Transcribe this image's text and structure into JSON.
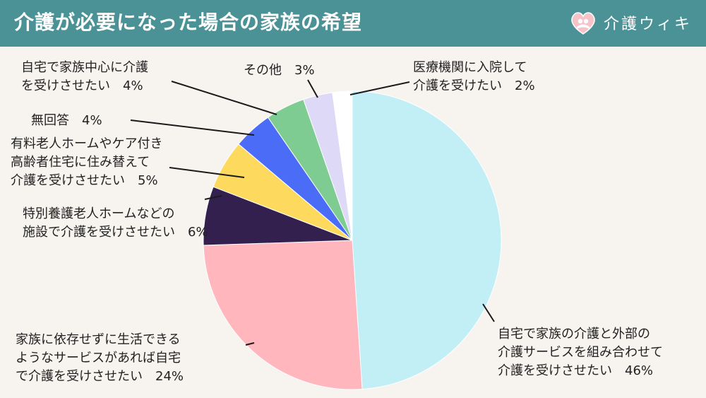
{
  "header": {
    "title": "介護が必要になった場合の家族の希望",
    "brand": "介護ウィキ",
    "brand_color": "#4a9296",
    "logo_icon": "heart-hug-icon"
  },
  "chart_data": {
    "type": "pie",
    "title": "介護が必要になった場合の家族の希望",
    "start_angle": "12 o'clock",
    "direction": "clockwise",
    "slices": [
      {
        "label": [
          "自宅で家族の介護と外部の",
          "介護サービスを組み合わせて",
          "介護を受けさせたい　46%"
        ],
        "value": 46,
        "color": "#c2eef5"
      },
      {
        "label": [
          "家族に依存せずに生活できる",
          "ようなサービスがあれば自宅",
          "で介護を受けさせたい　24%"
        ],
        "value": 24,
        "color": "#ffb6bd"
      },
      {
        "label": [
          "特別養護老人ホームなどの",
          "施設で介護を受けさせたい　6%"
        ],
        "value": 6,
        "color": "#34204f"
      },
      {
        "label": [
          "有料老人ホームやケア付き",
          "高齢者住宅に住み替えて",
          "介護を受けさせたい　5%"
        ],
        "value": 5,
        "color": "#fdd95e"
      },
      {
        "label": [
          "無回答　4%"
        ],
        "value": 4,
        "color": "#4a6cf7"
      },
      {
        "label": [
          "自宅で家族中心に介護",
          "を受けさせたい　4%"
        ],
        "value": 4,
        "color": "#7fcc92"
      },
      {
        "label": [
          "その他　3%"
        ],
        "value": 3,
        "color": "#ddd9f7"
      },
      {
        "label": [
          "医療機関に入院して",
          "介護を受けたい　2%"
        ],
        "value": 2,
        "color": "#ffffff"
      }
    ]
  }
}
